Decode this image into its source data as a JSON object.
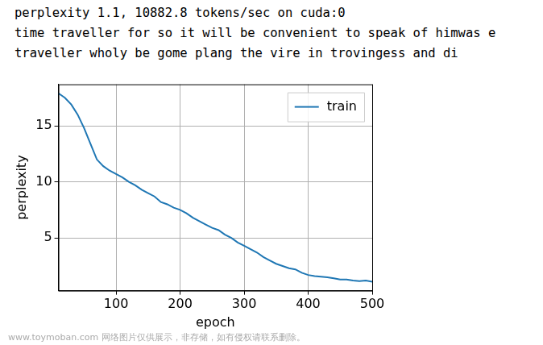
{
  "header": {
    "lines": [
      "perplexity 1.1, 10882.8 tokens/sec on cuda:0",
      "time traveller for so it will be convenient to speak of himwas e",
      "traveller wholy be gome plang the vire in trovingess and di"
    ]
  },
  "watermark": "www.toymoban.com 网络图片仅供展示，非存储，如有侵权请联系删除。",
  "chart_data": {
    "type": "line",
    "x_label": "epoch",
    "y_label": "perplexity",
    "x": [
      10,
      20,
      30,
      40,
      50,
      60,
      70,
      80,
      90,
      100,
      110,
      120,
      130,
      140,
      150,
      160,
      170,
      180,
      190,
      200,
      210,
      220,
      230,
      240,
      250,
      260,
      270,
      280,
      290,
      300,
      310,
      320,
      330,
      340,
      350,
      360,
      370,
      380,
      390,
      400,
      410,
      420,
      430,
      440,
      450,
      460,
      470,
      480,
      490,
      500
    ],
    "series": [
      {
        "name": "train",
        "color": "#1f77b4",
        "values": [
          17.9,
          17.5,
          16.9,
          16.0,
          14.8,
          13.4,
          12.0,
          11.4,
          11.0,
          10.7,
          10.4,
          10.0,
          9.7,
          9.3,
          9.0,
          8.7,
          8.2,
          8.0,
          7.7,
          7.5,
          7.2,
          6.8,
          6.5,
          6.2,
          5.9,
          5.7,
          5.3,
          5.0,
          4.6,
          4.3,
          4.0,
          3.7,
          3.3,
          3.0,
          2.7,
          2.5,
          2.3,
          2.2,
          1.9,
          1.7,
          1.6,
          1.55,
          1.5,
          1.4,
          1.3,
          1.3,
          1.2,
          1.15,
          1.2,
          1.1
        ]
      }
    ],
    "xlim": [
      10,
      500
    ],
    "ylim": [
      0.3,
      18.7
    ],
    "xticks": [
      100,
      200,
      300,
      400,
      500
    ],
    "yticks": [
      5,
      10,
      15
    ],
    "grid": true,
    "legend": "upper right"
  }
}
